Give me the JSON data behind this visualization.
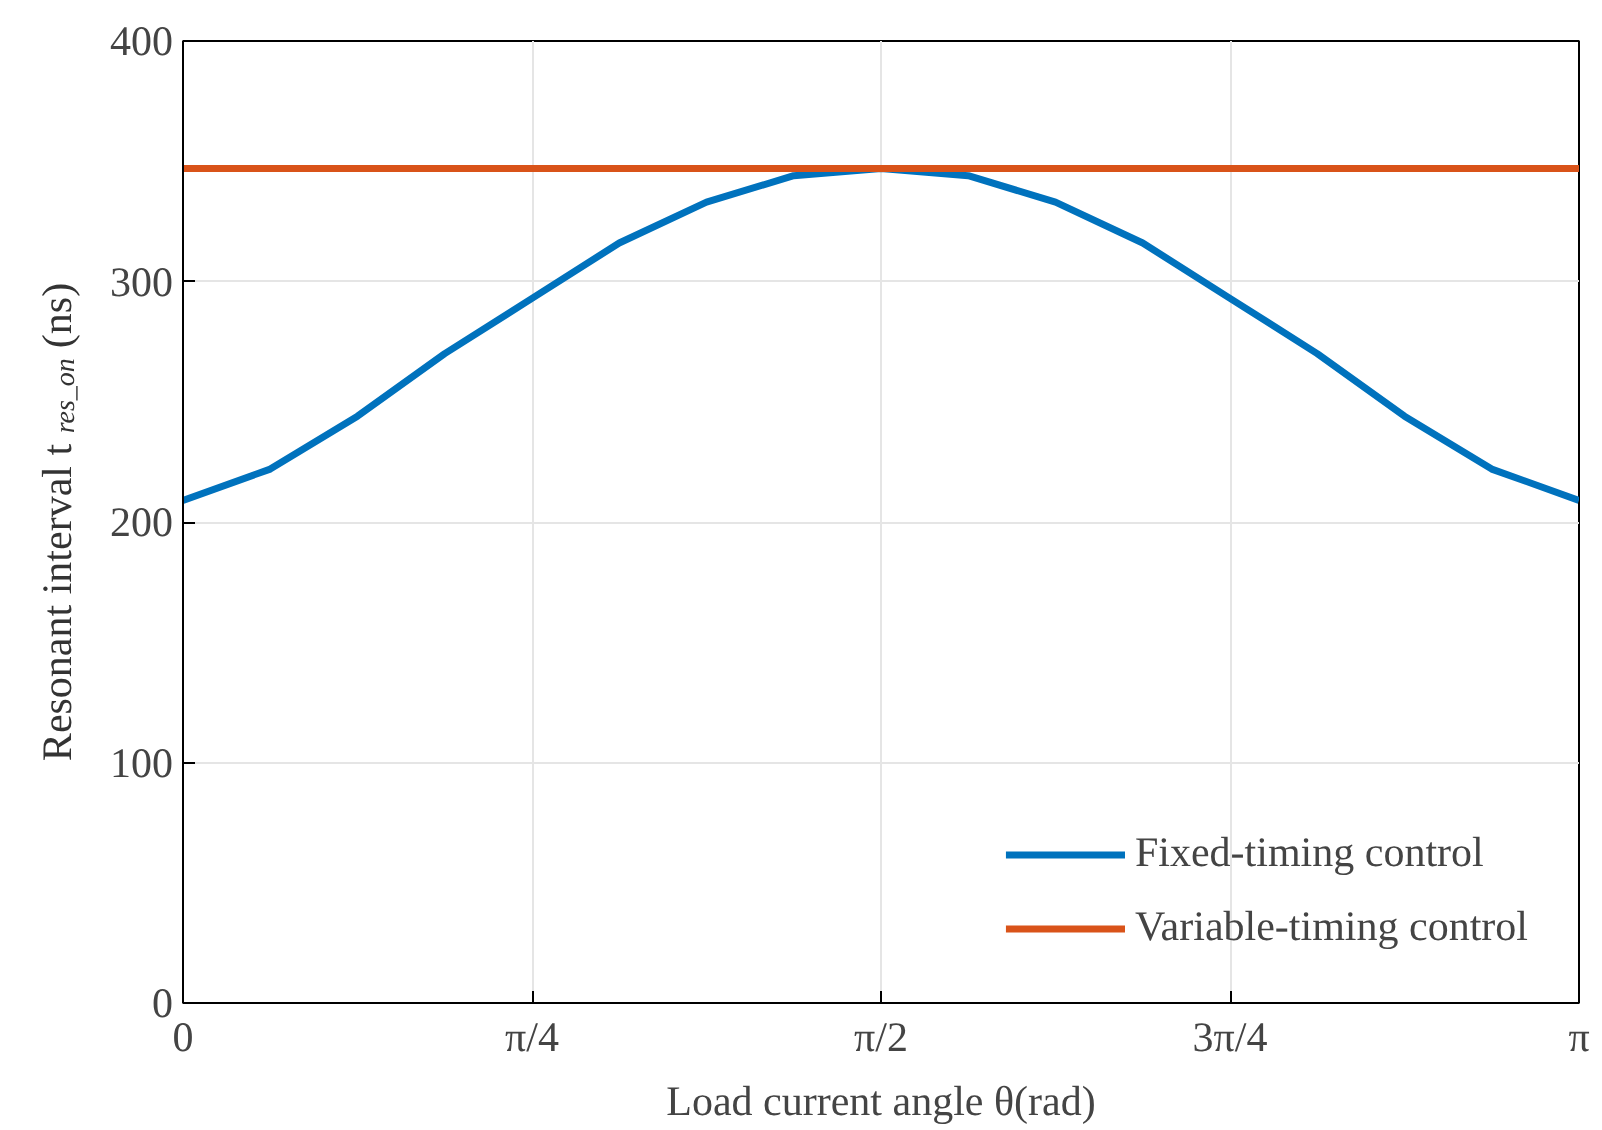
{
  "chart_data": {
    "type": "line",
    "xlabel": "Load current angle θ(rad)",
    "ylabel": "Resonant interval  t$_{res_on}$ (ns)",
    "x": [
      0,
      0.1963,
      0.3927,
      0.589,
      0.7854,
      0.9817,
      1.1781,
      1.3744,
      1.5708,
      1.7671,
      1.9635,
      2.1598,
      2.3562,
      2.5525,
      2.7489,
      2.9452,
      3.1416
    ],
    "series": [
      {
        "name": "Fixed-timing control",
        "color": "#0072bd",
        "values": [
          209,
          222,
          244,
          270,
          293,
          316,
          333,
          344,
          347,
          344,
          333,
          316,
          293,
          270,
          244,
          222,
          209
        ]
      },
      {
        "name": "Variable-timing control",
        "color": "#d95319",
        "values": [
          347,
          347,
          347,
          347,
          347,
          347,
          347,
          347,
          347,
          347,
          347,
          347,
          347,
          347,
          347,
          347,
          347
        ]
      }
    ],
    "xlim": [
      0,
      3.1416
    ],
    "ylim": [
      0,
      400
    ],
    "xticks": [
      0,
      {
        "value": 0.7854,
        "label": "π/4"
      },
      {
        "value": 1.5708,
        "label": "π/2"
      },
      {
        "value": 2.3562,
        "label": "3π/4"
      },
      {
        "value": 3.1416,
        "label": "π"
      }
    ],
    "yticks": [
      0,
      100,
      200,
      300,
      400
    ],
    "grid": true,
    "legend": "bottom right",
    "line_style": "solid"
  }
}
